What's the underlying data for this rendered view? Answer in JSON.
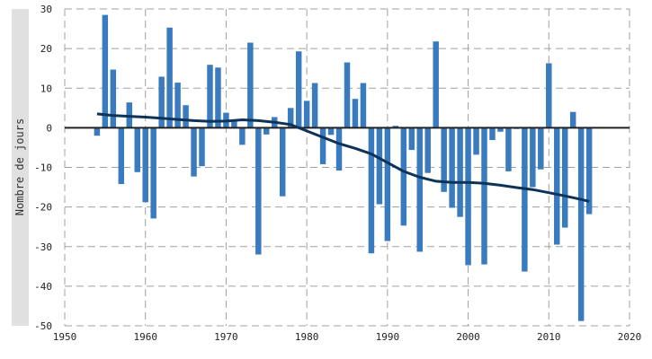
{
  "chart_data": {
    "type": "bar",
    "title": "",
    "xlabel": "",
    "ylabel": "Nombre de jours",
    "xlim": [
      1950,
      2020
    ],
    "ylim": [
      -50,
      30
    ],
    "xticks": [
      1950,
      1960,
      1970,
      1980,
      1990,
      2000,
      2010,
      2020
    ],
    "yticks": [
      30,
      20,
      10,
      0,
      -10,
      -20,
      -30,
      -40,
      -50
    ],
    "grid": true,
    "colors": {
      "bars": "#3a7abf",
      "trend": "#0d3358",
      "zero_line": "#222222",
      "grid": "#a0a0a0"
    },
    "series": [
      {
        "type": "bar",
        "x": [
          1954,
          1955,
          1956,
          1957,
          1958,
          1959,
          1960,
          1961,
          1962,
          1963,
          1964,
          1965,
          1966,
          1967,
          1968,
          1969,
          1970,
          1971,
          1972,
          1973,
          1974,
          1975,
          1976,
          1977,
          1978,
          1979,
          1980,
          1981,
          1982,
          1983,
          1984,
          1985,
          1986,
          1987,
          1988,
          1989,
          1990,
          1991,
          1992,
          1993,
          1994,
          1995,
          1996,
          1997,
          1998,
          1999,
          2000,
          2001,
          2002,
          2003,
          2004,
          2005,
          2006,
          2007,
          2008,
          2009,
          2010,
          2011,
          2012,
          2013,
          2014,
          2015
        ],
        "values": [
          -2,
          28.5,
          14.7,
          -14.2,
          6.4,
          -11.2,
          -18.8,
          -22.9,
          12.9,
          25.3,
          11.4,
          5.7,
          -12.3,
          -9.7,
          15.9,
          15.2,
          3.8,
          1.6,
          -4.3,
          21.5,
          -32,
          -1.7,
          2.7,
          -17.3,
          5,
          19.3,
          6.8,
          11.3,
          -9.2,
          -1.8,
          -10.8,
          16.5,
          7.3,
          11.3,
          -31.7,
          -19.3,
          -28.6,
          0.5,
          -24.7,
          -5.6,
          -31.3,
          -11.4,
          21.8,
          -16.2,
          -20.2,
          -22.5,
          -34.7,
          -6.8,
          -34.5,
          -3.1,
          -1,
          -11,
          -0.3,
          -36.3,
          -15,
          -10.5,
          16.3,
          -29.5,
          -25.2,
          4,
          -48.8,
          -21.8
        ]
      },
      {
        "type": "line",
        "x": [
          1954,
          1956,
          1958,
          1960,
          1962,
          1964,
          1966,
          1968,
          1970,
          1972,
          1974,
          1976,
          1978,
          1980,
          1982,
          1984,
          1986,
          1988,
          1990,
          1992,
          1994,
          1996,
          1998,
          2000,
          2002,
          2004,
          2006,
          2008,
          2010,
          2012,
          2014,
          2015
        ],
        "values": [
          3.5,
          3.1,
          2.9,
          2.7,
          2.4,
          2.1,
          1.8,
          1.6,
          1.7,
          2,
          1.8,
          1.4,
          0.8,
          -0.8,
          -2.4,
          -4,
          -5.2,
          -6.6,
          -8.8,
          -11,
          -12.5,
          -13.5,
          -13.8,
          -13.8,
          -14,
          -14.5,
          -15.1,
          -15.6,
          -16.4,
          -17.2,
          -18.1,
          -18.6
        ]
      }
    ]
  }
}
